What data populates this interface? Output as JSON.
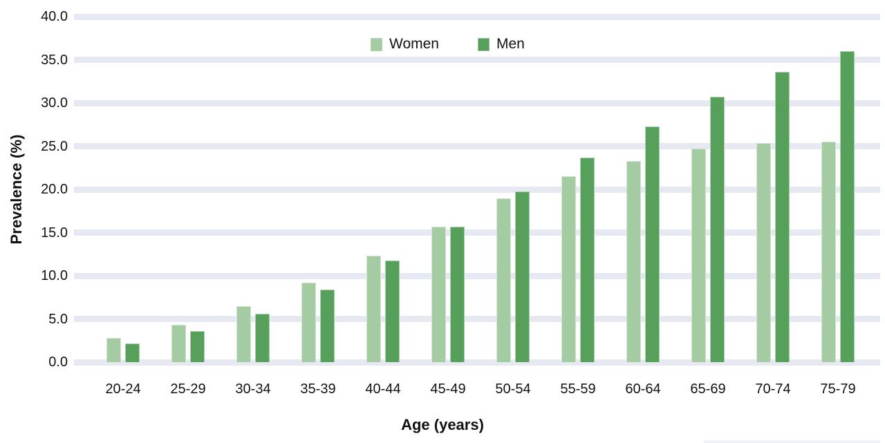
{
  "chart_data": {
    "type": "bar",
    "title": "",
    "xlabel": "Age (years)",
    "ylabel": "Prevalence (%)",
    "categories": [
      "20-24",
      "25-29",
      "30-34",
      "35-39",
      "40-44",
      "45-49",
      "50-54",
      "55-59",
      "60-64",
      "65-69",
      "70-74",
      "75-79"
    ],
    "series": [
      {
        "name": "Women",
        "color": "#a4cba1",
        "values": [
          2.8,
          4.3,
          6.5,
          9.2,
          12.3,
          15.7,
          19.0,
          21.5,
          23.3,
          24.7,
          25.4,
          25.5
        ]
      },
      {
        "name": "Men",
        "color": "#56a05c",
        "values": [
          2.2,
          3.6,
          5.6,
          8.4,
          11.8,
          15.7,
          19.8,
          23.7,
          27.3,
          30.7,
          33.6,
          36.0
        ]
      }
    ],
    "ylim": [
      0,
      40
    ],
    "ytick_step": 5,
    "yticks": [
      "0.0",
      "5.0",
      "10.0",
      "15.0",
      "20.0",
      "25.0",
      "30.0",
      "35.0",
      "40.0"
    ],
    "grid": "horizontal-bands",
    "legend_position": "top-center"
  },
  "colors": {
    "background": "#ffffff",
    "gridline": "#e6e9f1",
    "text": "#111111",
    "women": "#a4cba1",
    "men": "#56a05c"
  }
}
